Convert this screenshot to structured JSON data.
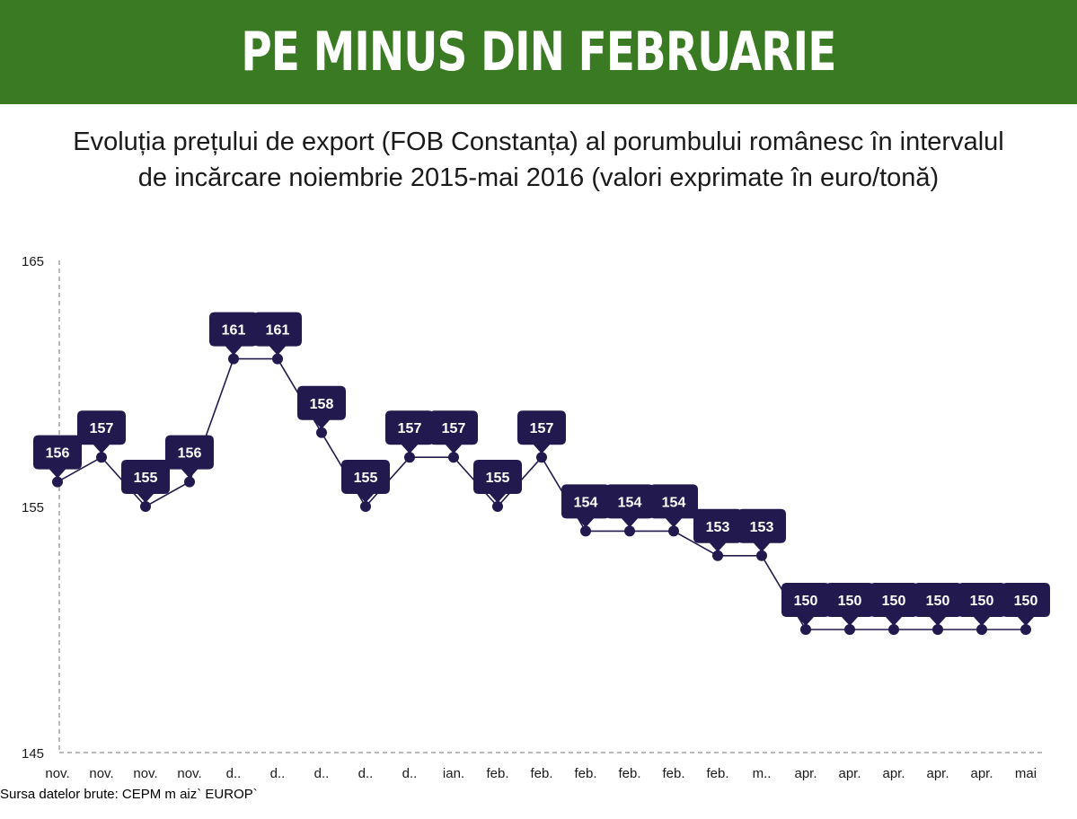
{
  "header": {
    "title": "PE MINUS DIN FEBRUARIE",
    "subtitle_line1": "Evoluția prețului de export (FOB Constanța) al porumbului românesc în intervalul",
    "subtitle_line2": "de incărcare noiembrie 2015-mai 2016 (valori exprimate în euro/tonă)"
  },
  "colors": {
    "banner": "#3a7a22",
    "series": "#221a4e",
    "axis": "#8c8c8c"
  },
  "chart_data": {
    "type": "line",
    "title": "",
    "xlabel": "",
    "ylabel": "",
    "ylim": [
      145,
      165
    ],
    "yticks": [
      "145",
      "155",
      "165"
    ],
    "grid": false,
    "categories": [
      "nov.",
      "nov.",
      "nov.",
      "nov.",
      "d..",
      "d..",
      "d..",
      "d..",
      "d..",
      "ian.",
      "feb.",
      "feb.",
      "feb.",
      "feb.",
      "feb.",
      "feb.",
      "m..",
      "apr.",
      "apr.",
      "apr.",
      "apr.",
      "apr.",
      "mai"
    ],
    "values": [
      156,
      157,
      155,
      156,
      161,
      161,
      158,
      155,
      157,
      157,
      155,
      157,
      154,
      154,
      154,
      153,
      153,
      150,
      150,
      150,
      150,
      150,
      150
    ],
    "data_labels": [
      "156",
      "157",
      "155",
      "156",
      "161",
      "161",
      "158",
      "155",
      "157",
      "157",
      "155",
      "157",
      "154",
      "154",
      "154",
      "153",
      "153",
      "150",
      "150",
      "150",
      "150",
      "150",
      "150"
    ]
  },
  "footer": {
    "source": "Sursa datelor brute: CEPM m aiz` EUROP`"
  }
}
